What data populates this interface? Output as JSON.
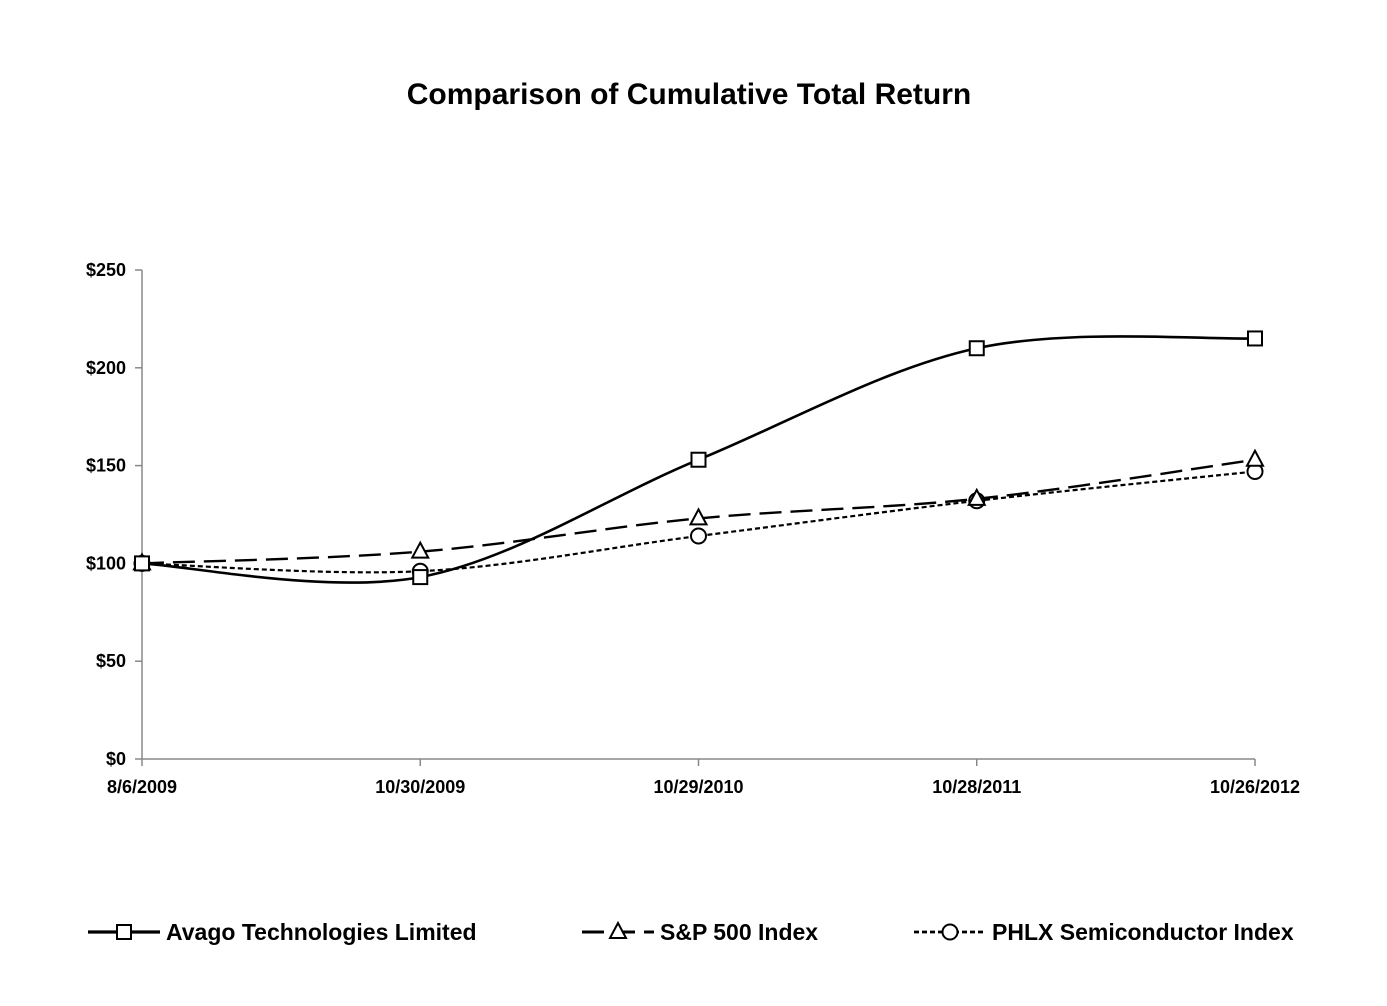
{
  "chart_data": {
    "type": "line",
    "title": "Comparison of Cumulative Total Return",
    "xlabel": "",
    "ylabel": "",
    "categories": [
      "8/6/2009",
      "10/30/2009",
      "10/29/2010",
      "10/28/2011",
      "10/26/2012"
    ],
    "y_ticks": [
      "$0",
      "$50",
      "$100",
      "$150",
      "$200",
      "$250"
    ],
    "y_tick_values": [
      0,
      50,
      100,
      150,
      200,
      250
    ],
    "ylim": [
      0,
      250
    ],
    "grid": false,
    "legend_position": "bottom",
    "series": [
      {
        "name": "Avago Technologies Limited",
        "values": [
          100,
          93,
          153,
          210,
          215
        ],
        "style": "solid",
        "marker": "square",
        "color": "#000000"
      },
      {
        "name": "S&P 500 Index",
        "values": [
          100,
          106,
          123,
          133,
          153
        ],
        "style": "dashed",
        "marker": "triangle",
        "color": "#000000"
      },
      {
        "name": "PHLX Semiconductor Index",
        "values": [
          100,
          96,
          114,
          132,
          147
        ],
        "style": "dotted",
        "marker": "circle",
        "color": "#000000"
      }
    ]
  }
}
